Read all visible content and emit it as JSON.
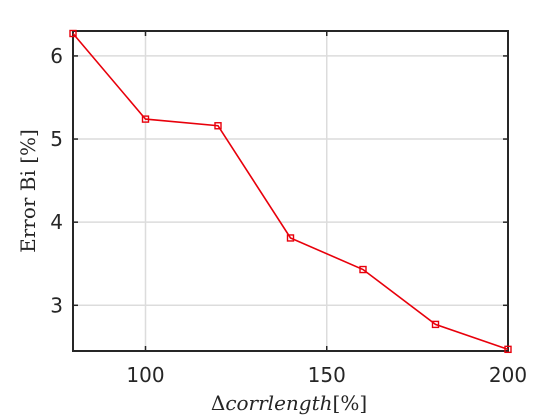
{
  "chart_data": {
    "type": "line",
    "x": [
      80,
      100,
      120,
      140,
      160,
      180,
      200
    ],
    "series": [
      {
        "values": [
          6.27,
          5.24,
          5.16,
          3.81,
          3.43,
          2.77,
          2.47
        ]
      }
    ],
    "xlabel": "Δcorrlength[%]",
    "xlabel_parts": {
      "symbol": "Δ",
      "name": "corrlength",
      "unit": "[%]"
    },
    "ylabel": "Error Bi [%]",
    "xlim": [
      80,
      200
    ],
    "ylim": [
      2.45,
      6.3
    ],
    "xticks": [
      100,
      150,
      200
    ],
    "yticks": [
      3,
      4,
      5,
      6
    ],
    "grid": true,
    "legend": "none",
    "marker": "square",
    "colors": {
      "line": "#e8000b",
      "axis": "#262626",
      "grid": "#dcdcdc"
    }
  }
}
